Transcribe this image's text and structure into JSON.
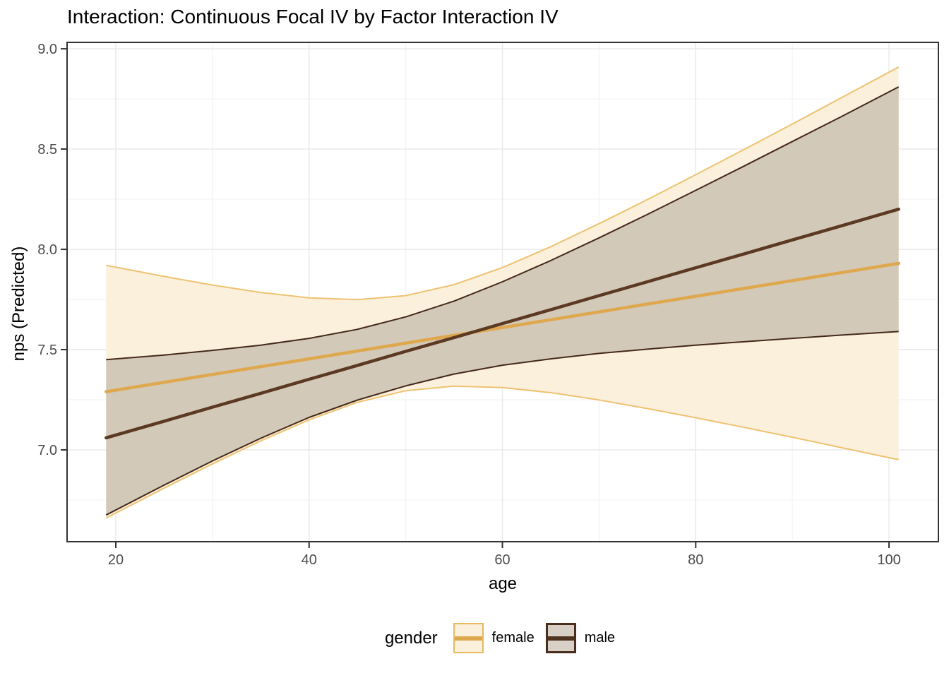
{
  "title": "Interaction: Continuous Focal IV by Factor Interaction IV",
  "legend": {
    "title": "gender",
    "entries": [
      {
        "label": "female",
        "fill": "#FBF0DC",
        "border": "#E8BA5F",
        "line": "#DFA84F"
      },
      {
        "label": "male",
        "fill": "#D8CFC7",
        "border": "#4A2E1D",
        "line": "#4F3220"
      }
    ]
  },
  "colors": {
    "grid_major": "#E8E8E8",
    "grid_minor": "#F3F3F3",
    "panel_border": "#333333",
    "tick_mark": "#333333",
    "tick_label": "#4D4D4D",
    "background": "#FFFFFF"
  },
  "chart_data": {
    "type": "line",
    "title": "Interaction: Continuous Focal IV by Factor Interaction IV",
    "xlabel": "age",
    "ylabel": "nps (Predicted)",
    "legend_position": "bottom",
    "grid": true,
    "x_range": [
      14.96,
      105.11
    ],
    "y_range": [
      6.542,
      9.032
    ],
    "x_tick_values": [
      20,
      40,
      60,
      80,
      100
    ],
    "x_tick_labels": [
      "20",
      "40",
      "60",
      "80",
      "100"
    ],
    "x_minor_values": [
      30,
      50,
      70,
      90
    ],
    "y_tick_values": [
      7.0,
      7.5,
      8.0,
      8.5,
      9.0
    ],
    "y_tick_labels": [
      "7.0",
      "7.5",
      "8.0",
      "8.5",
      "9.0"
    ],
    "y_minor_values": [
      6.75,
      7.25,
      7.75,
      8.25,
      8.75
    ],
    "x": [
      19,
      25,
      30,
      35,
      40,
      45,
      50,
      55,
      60,
      65,
      70,
      75,
      80,
      85,
      90,
      95,
      101
    ],
    "series": [
      {
        "name": "female",
        "line_color": "#DFA84F",
        "edge_color": "#EEC271",
        "fill_color": "#FBF0DC",
        "mean": [
          7.29,
          7.337,
          7.376,
          7.415,
          7.454,
          7.493,
          7.532,
          7.571,
          7.61,
          7.649,
          7.688,
          7.727,
          7.766,
          7.805,
          7.844,
          7.883,
          7.93
        ],
        "upper": [
          7.92,
          7.865,
          7.822,
          7.785,
          7.758,
          7.749,
          7.769,
          7.824,
          7.909,
          8.013,
          8.128,
          8.248,
          8.372,
          8.498,
          8.625,
          8.754,
          8.909
        ],
        "lower": [
          6.66,
          6.809,
          6.93,
          7.045,
          7.15,
          7.237,
          7.295,
          7.318,
          7.311,
          7.285,
          7.249,
          7.206,
          7.16,
          7.112,
          7.063,
          7.012,
          6.951
        ]
      },
      {
        "name": "male",
        "line_color": "#5B3922",
        "edge_color": "#44291A",
        "fill_color": "#D3C9B9",
        "mean": [
          7.06,
          7.143,
          7.213,
          7.282,
          7.352,
          7.421,
          7.491,
          7.56,
          7.63,
          7.699,
          7.769,
          7.838,
          7.908,
          7.977,
          8.047,
          8.116,
          8.2
        ],
        "upper": [
          7.45,
          7.473,
          7.496,
          7.522,
          7.556,
          7.601,
          7.663,
          7.742,
          7.838,
          7.944,
          8.057,
          8.174,
          8.294,
          8.415,
          8.538,
          8.66,
          8.81
        ],
        "lower": [
          6.675,
          6.824,
          6.945,
          7.058,
          7.162,
          7.248,
          7.319,
          7.378,
          7.422,
          7.454,
          7.481,
          7.502,
          7.522,
          7.539,
          7.556,
          7.572,
          7.59
        ]
      }
    ]
  }
}
